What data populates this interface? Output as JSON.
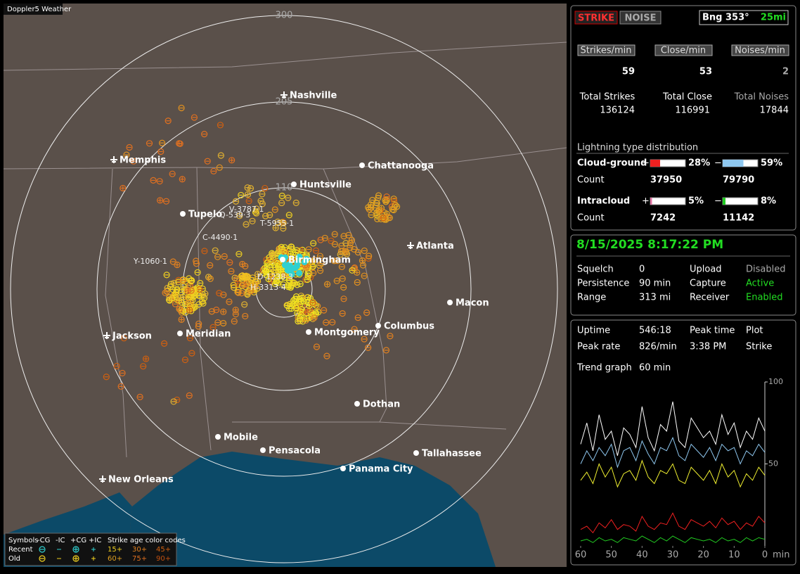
{
  "app_title": "Doppler5 Weather",
  "map": {
    "range_labels": [
      300,
      205,
      110
    ],
    "cities": [
      "Nashville",
      "Memphis",
      "Chattanooga",
      "Huntsville",
      "Tupelo",
      "Atlanta",
      "Birmingham",
      "Macon",
      "Jackson",
      "Meridian",
      "Montgomery",
      "Columbus",
      "Dothan",
      "Mobile",
      "Pensacola",
      "Tallahassee",
      "Panama City",
      "New Orleans"
    ],
    "cell_labels": [
      "Y-1060·1",
      "C-4490·1",
      "D-1238·3",
      "H-3313·4",
      "T-5955·1",
      "Q-539·3",
      "V-3787·1"
    ],
    "legend": {
      "symbols_label": "Symbols",
      "types": [
        "-CG",
        "-IC",
        "+CG",
        "+IC"
      ],
      "age_title": "Strike age color codes",
      "recent": "Recent",
      "old": "Old",
      "recent_ages": [
        "15+",
        "30+",
        "45+"
      ],
      "old_ages": [
        "60+",
        "75+",
        "90+"
      ]
    }
  },
  "mode": {
    "strike": "STRIKE",
    "noise": "NOISE",
    "bearing": "Bng 353°",
    "distance": "25mi"
  },
  "rates": {
    "headers": [
      "Strikes/min",
      "Close/min",
      "Noises/min"
    ],
    "values": [
      59,
      53,
      2
    ],
    "total_labels": [
      "Total Strikes",
      "Total Close",
      "Total Noises"
    ],
    "totals": [
      136124,
      116991,
      17844
    ]
  },
  "distribution": {
    "title": "Lightning type distribution",
    "count_label": "Count",
    "plus": "+",
    "minus": "−",
    "rows": [
      {
        "name": "Cloud-ground",
        "percent": [
          28,
          59
        ],
        "percent_labels": [
          "28%",
          "59%"
        ],
        "counts": [
          37950,
          79790
        ]
      },
      {
        "name": "Intracloud",
        "percent": [
          5,
          8
        ],
        "percent_labels": [
          "5%",
          "8%"
        ],
        "counts": [
          7242,
          11142
        ]
      }
    ]
  },
  "status": {
    "datetime": "8/15/2025 8:17:22 PM",
    "rows": [
      [
        "Squelch",
        "0",
        "Upload",
        "Disabled"
      ],
      [
        "Persistence",
        "90 min",
        "Capture",
        "Active"
      ],
      [
        "Range",
        "313 mi",
        "Receiver",
        "Enabled"
      ]
    ]
  },
  "stats": {
    "uptime_label": "Uptime",
    "uptime": "546:18",
    "peak_time_label": "Peak time",
    "peak_time": "3:38 PM",
    "plot_label": "Plot",
    "peak_rate_label": "Peak rate",
    "peak_rate": "826/min",
    "plot": "Strike"
  },
  "trend_chart": {
    "type": "line",
    "title": "Trend graph",
    "window": "60 min",
    "xlabel": "min",
    "x": [
      60,
      58,
      56,
      54,
      52,
      50,
      48,
      46,
      44,
      42,
      40,
      38,
      36,
      34,
      32,
      30,
      28,
      26,
      24,
      22,
      20,
      18,
      16,
      14,
      12,
      10,
      8,
      6,
      4,
      2,
      0
    ],
    "xlim": [
      60,
      0
    ],
    "xticks": [
      60,
      50,
      40,
      30,
      20,
      10,
      0
    ],
    "ylim": [
      0,
      100
    ],
    "yticks": [
      50,
      100
    ],
    "series": [
      {
        "color": "#ffffff",
        "values": [
          62,
          75,
          58,
          80,
          65,
          70,
          55,
          72,
          68,
          60,
          85,
          66,
          58,
          74,
          70,
          88,
          64,
          60,
          78,
          72,
          66,
          70,
          62,
          80,
          68,
          75,
          60,
          70,
          65,
          78,
          70
        ]
      },
      {
        "color": "#8fc8f0",
        "values": [
          50,
          58,
          52,
          60,
          55,
          62,
          48,
          58,
          60,
          52,
          64,
          56,
          50,
          60,
          58,
          66,
          55,
          52,
          62,
          58,
          54,
          60,
          52,
          62,
          58,
          60,
          50,
          58,
          55,
          62,
          57
        ]
      },
      {
        "color": "#f0f030",
        "values": [
          40,
          45,
          38,
          50,
          42,
          48,
          36,
          44,
          46,
          40,
          52,
          42,
          38,
          46,
          44,
          50,
          40,
          38,
          48,
          44,
          40,
          46,
          38,
          50,
          42,
          46,
          36,
          44,
          40,
          48,
          43
        ]
      },
      {
        "color": "#ee2020",
        "values": [
          10,
          12,
          8,
          14,
          11,
          16,
          10,
          13,
          12,
          9,
          18,
          12,
          10,
          14,
          13,
          20,
          12,
          10,
          16,
          14,
          12,
          15,
          11,
          17,
          13,
          15,
          10,
          14,
          12,
          18,
          14
        ]
      },
      {
        "color": "#22cc22",
        "values": [
          3,
          4,
          2,
          5,
          3,
          4,
          2,
          5,
          4,
          3,
          6,
          4,
          2,
          5,
          3,
          6,
          4,
          2,
          5,
          4,
          3,
          4,
          2,
          5,
          3,
          4,
          2,
          5,
          3,
          5,
          4
        ]
      }
    ]
  }
}
